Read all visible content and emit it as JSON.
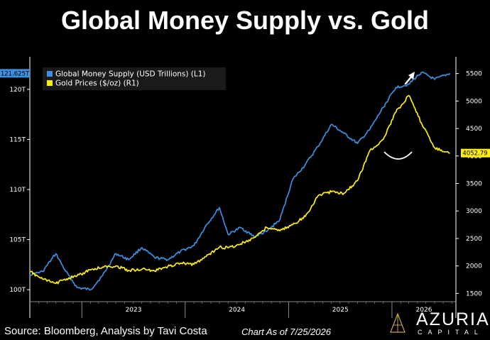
{
  "title": "Global Money Supply vs. Gold",
  "footer": {
    "source": "Source: Bloomberg, Analysis by Tavi Costa",
    "chart_as_of": "Chart As of 7/25/2026"
  },
  "logo": {
    "name": "AZURIA",
    "sub": "CAPITAL"
  },
  "colors": {
    "background": "#000000",
    "money_supply": "#3d8fe0",
    "gold": "#ffee11",
    "axis": "#ffffff",
    "gridline": "#555555"
  },
  "chart_data": {
    "type": "line",
    "title": "Global Money Supply vs. Gold",
    "x_axis": {
      "type": "date",
      "range": [
        "2022-07-01",
        "2026-08-15"
      ],
      "tick_labels": [
        "2023",
        "2024",
        "2025",
        "2026"
      ]
    },
    "y_axis_left": {
      "range": [
        98.8,
        122.4
      ],
      "ticks": [
        100,
        105,
        110,
        115,
        120
      ],
      "tick_labels": [
        "100T",
        "105T",
        "110T",
        "115T",
        "120T"
      ],
      "last_value_label": "121.625T"
    },
    "y_axis_right": {
      "range": [
        1350,
        5650
      ],
      "ticks": [
        1500,
        2000,
        2500,
        3000,
        3500,
        4000,
        4500,
        5000,
        5500
      ],
      "tick_labels": [
        "1500",
        "2000",
        "2500",
        "3000",
        "3500",
        "4000",
        "4500",
        "5000",
        "5500"
      ],
      "last_value_label": "4052.79"
    },
    "legend": {
      "placement": "top-left"
    },
    "annotations": [
      "up-arrow",
      "down-curve"
    ],
    "series": [
      {
        "name": "Global Money Supply (USD Trillions) (L1)",
        "axis": "left",
        "x": [
          "2022-07-01",
          "2022-08-15",
          "2022-10-01",
          "2022-11-01",
          "2022-12-15",
          "2023-02-01",
          "2023-03-15",
          "2023-05-01",
          "2023-06-15",
          "2023-08-01",
          "2023-09-15",
          "2023-11-01",
          "2023-12-15",
          "2024-02-01",
          "2024-03-15",
          "2024-05-01",
          "2024-06-01",
          "2024-07-15",
          "2024-09-01",
          "2024-10-15",
          "2024-12-01",
          "2025-01-15",
          "2025-03-01",
          "2025-04-15",
          "2025-06-01",
          "2025-07-15",
          "2025-09-01",
          "2025-10-15",
          "2025-12-01",
          "2026-01-15",
          "2026-03-01",
          "2026-04-15",
          "2026-06-01",
          "2026-07-25"
        ],
        "values": [
          101.5,
          101.8,
          103.6,
          102.0,
          100.2,
          100.0,
          101.4,
          103.6,
          103.0,
          104.2,
          103.2,
          103.0,
          103.8,
          104.4,
          106.4,
          108.2,
          105.5,
          106.2,
          105.3,
          105.8,
          107.0,
          111.0,
          112.5,
          114.3,
          116.5,
          115.6,
          114.6,
          116.0,
          118.2,
          120.2,
          120.5,
          121.7,
          121.0,
          121.6
        ]
      },
      {
        "name": "Gold Prices ($/oz) (R1)",
        "axis": "right",
        "x": [
          "2022-07-01",
          "2022-08-15",
          "2022-10-01",
          "2022-11-01",
          "2022-12-15",
          "2023-02-01",
          "2023-03-15",
          "2023-05-01",
          "2023-06-15",
          "2023-08-01",
          "2023-09-15",
          "2023-11-01",
          "2023-12-15",
          "2024-02-01",
          "2024-03-15",
          "2024-05-01",
          "2024-06-01",
          "2024-07-15",
          "2024-09-01",
          "2024-10-15",
          "2024-12-01",
          "2025-01-15",
          "2025-03-01",
          "2025-04-15",
          "2025-06-01",
          "2025-07-15",
          "2025-09-01",
          "2025-10-15",
          "2025-12-01",
          "2026-01-15",
          "2026-03-01",
          "2026-04-15",
          "2026-06-01",
          "2026-07-25"
        ],
        "values": [
          1900,
          1760,
          1680,
          1760,
          1820,
          1930,
          1980,
          2000,
          1920,
          1940,
          1910,
          1990,
          2050,
          2030,
          2170,
          2340,
          2330,
          2400,
          2520,
          2700,
          2640,
          2750,
          2900,
          3280,
          3350,
          3320,
          3550,
          4100,
          4300,
          4800,
          5100,
          4600,
          4150,
          4052.79
        ]
      }
    ]
  }
}
